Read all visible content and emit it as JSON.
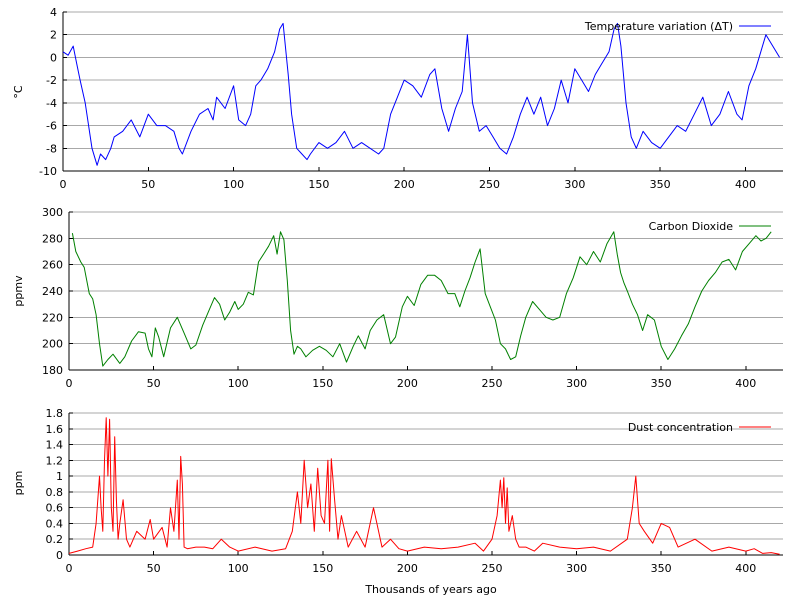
{
  "chart_data": [
    {
      "type": "line",
      "ylabel": "°C",
      "legend": "Temperature variation (ΔT)",
      "legend_position": "top-right",
      "color": "#0000ff",
      "grid": true,
      "xlim": [
        0,
        422
      ],
      "ylim": [
        -10,
        4
      ],
      "xticks": [
        0,
        50,
        100,
        150,
        200,
        250,
        300,
        350,
        400
      ],
      "yticks": [
        -10,
        -8,
        -6,
        -4,
        -2,
        0,
        2,
        4
      ],
      "x": [
        0,
        3,
        6,
        8,
        10,
        13,
        15,
        17,
        20,
        22,
        25,
        28,
        30,
        35,
        40,
        45,
        50,
        55,
        60,
        65,
        68,
        70,
        75,
        80,
        85,
        88,
        90,
        95,
        100,
        103,
        107,
        110,
        113,
        116,
        120,
        124,
        127,
        129,
        132,
        134,
        137,
        140,
        143,
        145,
        150,
        155,
        160,
        165,
        170,
        175,
        180,
        185,
        188,
        192,
        196,
        200,
        205,
        210,
        215,
        218,
        222,
        226,
        230,
        234,
        237,
        240,
        244,
        248,
        252,
        256,
        260,
        264,
        268,
        272,
        276,
        280,
        284,
        288,
        292,
        296,
        300,
        304,
        308,
        312,
        316,
        320,
        323,
        325,
        327,
        330,
        333,
        336,
        340,
        345,
        350,
        355,
        360,
        365,
        370,
        375,
        380,
        385,
        390,
        395,
        398,
        402,
        406,
        409,
        412,
        416,
        420
      ],
      "y": [
        0.5,
        0.2,
        1,
        -0.5,
        -2,
        -4,
        -6,
        -8,
        -9.5,
        -8.5,
        -9,
        -8,
        -7,
        -6.5,
        -5.5,
        -7,
        -5,
        -6,
        -6,
        -6.5,
        -8,
        -8.5,
        -6.5,
        -5,
        -4.5,
        -5.5,
        -3.5,
        -4.5,
        -2.5,
        -5.5,
        -6,
        -5,
        -2.5,
        -2,
        -1,
        0.5,
        2.5,
        3,
        -1.5,
        -5,
        -8,
        -8.5,
        -9,
        -8.5,
        -7.5,
        -8,
        -7.5,
        -6.5,
        -8,
        -7.5,
        -8,
        -8.5,
        -8,
        -5,
        -3.5,
        -2,
        -2.5,
        -3.5,
        -1.5,
        -1,
        -4.5,
        -6.5,
        -4.5,
        -3,
        2,
        -4,
        -6.5,
        -6,
        -7,
        -8,
        -8.5,
        -7,
        -5,
        -3.5,
        -5,
        -3.5,
        -6,
        -4.5,
        -2,
        -4,
        -1,
        -2,
        -3,
        -1.5,
        -0.5,
        0.5,
        2.5,
        3,
        1,
        -4,
        -7,
        -8,
        -6.5,
        -7.5,
        -8,
        -7,
        -6,
        -6.5,
        -5,
        -3.5,
        -6,
        -5,
        -3,
        -5,
        -5.5,
        -2.5,
        -1,
        0.5,
        2,
        1,
        0
      ]
    },
    {
      "type": "line",
      "ylabel": "ppmv",
      "legend": "Carbon Dioxide",
      "legend_position": "top-right",
      "color": "#008000",
      "grid": true,
      "xlim": [
        0,
        422
      ],
      "ylim": [
        180,
        300
      ],
      "xticks": [
        0,
        50,
        100,
        150,
        200,
        250,
        300,
        350,
        400
      ],
      "yticks": [
        180,
        200,
        220,
        240,
        260,
        280,
        300
      ],
      "x": [
        2,
        4,
        7,
        9,
        12,
        14,
        16,
        18,
        20,
        23,
        26,
        30,
        33,
        37,
        41,
        45,
        47,
        49,
        51,
        53,
        56,
        60,
        64,
        68,
        72,
        75,
        79,
        83,
        86,
        89,
        92,
        95,
        98,
        100,
        103,
        106,
        109,
        112,
        115,
        118,
        121,
        123,
        125,
        127,
        129,
        131,
        133,
        135,
        137,
        140,
        144,
        148,
        152,
        156,
        160,
        164,
        168,
        171,
        175,
        178,
        182,
        186,
        190,
        193,
        197,
        200,
        204,
        208,
        212,
        216,
        220,
        224,
        228,
        231,
        234,
        237,
        240,
        243,
        246,
        249,
        252,
        255,
        258,
        261,
        264,
        267,
        270,
        274,
        278,
        282,
        286,
        290,
        294,
        298,
        302,
        306,
        310,
        314,
        318,
        322,
        324,
        326,
        328,
        330,
        333,
        336,
        339,
        342,
        346,
        350,
        354,
        358,
        362,
        366,
        370,
        374,
        378,
        382,
        386,
        390,
        394,
        398,
        402,
        406,
        409,
        412,
        415
      ],
      "y": [
        284,
        270,
        262,
        258,
        238,
        234,
        222,
        200,
        183,
        188,
        192,
        185,
        190,
        202,
        209,
        208,
        196,
        190,
        212,
        205,
        190,
        212,
        220,
        208,
        196,
        199,
        214,
        226,
        235,
        230,
        218,
        224,
        232,
        226,
        230,
        239,
        237,
        262,
        268,
        274,
        282,
        268,
        285,
        279,
        248,
        210,
        192,
        198,
        196,
        190,
        195,
        198,
        195,
        190,
        200,
        186,
        198,
        206,
        196,
        210,
        218,
        222,
        200,
        205,
        228,
        236,
        229,
        245,
        252,
        252,
        248,
        238,
        238,
        228,
        240,
        250,
        262,
        272,
        238,
        228,
        218,
        200,
        196,
        188,
        190,
        206,
        220,
        232,
        226,
        220,
        218,
        220,
        238,
        250,
        266,
        260,
        270,
        262,
        276,
        285,
        268,
        254,
        246,
        240,
        230,
        222,
        210,
        222,
        218,
        198,
        188,
        196,
        206,
        215,
        228,
        240,
        248,
        254,
        262,
        264,
        256,
        270,
        276,
        282,
        278,
        280,
        285
      ]
    },
    {
      "type": "line",
      "ylabel": "ppm",
      "xlabel": "Thousands of years ago",
      "legend": "Dust concentration",
      "legend_position": "top-right",
      "color": "#ff0000",
      "grid": true,
      "xlim": [
        0,
        422
      ],
      "ylim": [
        0,
        1.8
      ],
      "xticks": [
        0,
        50,
        100,
        150,
        200,
        250,
        300,
        350,
        400
      ],
      "yticks": [
        0,
        0.2,
        0.4,
        0.6,
        0.8,
        1,
        1.2,
        1.4,
        1.6,
        1.8
      ],
      "x": [
        0,
        5,
        10,
        14,
        16,
        18,
        19,
        20,
        21,
        22,
        23,
        24,
        25,
        26,
        27,
        28,
        29,
        30,
        32,
        34,
        36,
        40,
        45,
        48,
        50,
        55,
        58,
        60,
        62,
        64,
        65,
        66,
        67,
        68,
        70,
        75,
        80,
        85,
        90,
        95,
        100,
        110,
        120,
        128,
        132,
        135,
        137,
        139,
        141,
        143,
        145,
        147,
        149,
        151,
        153,
        154,
        155,
        157,
        159,
        161,
        163,
        165,
        170,
        175,
        180,
        185,
        190,
        195,
        200,
        210,
        220,
        230,
        240,
        245,
        250,
        253,
        255,
        256,
        257,
        258,
        259,
        260,
        262,
        264,
        266,
        270,
        275,
        280,
        290,
        300,
        310,
        320,
        330,
        333,
        335,
        337,
        340,
        345,
        350,
        355,
        360,
        370,
        380,
        390,
        400,
        405,
        410,
        415,
        420
      ],
      "y": [
        0.02,
        0.05,
        0.08,
        0.1,
        0.4,
        1.0,
        0.6,
        0.3,
        1.2,
        1.74,
        1.0,
        1.72,
        0.6,
        0.3,
        1.5,
        0.7,
        0.2,
        0.4,
        0.7,
        0.2,
        0.1,
        0.3,
        0.2,
        0.45,
        0.2,
        0.35,
        0.1,
        0.6,
        0.3,
        0.95,
        0.2,
        1.25,
        0.9,
        0.1,
        0.08,
        0.1,
        0.1,
        0.08,
        0.2,
        0.1,
        0.05,
        0.1,
        0.05,
        0.08,
        0.3,
        0.8,
        0.4,
        1.2,
        0.6,
        0.9,
        0.3,
        1.1,
        0.5,
        0.4,
        1.2,
        0.3,
        1.22,
        0.7,
        0.2,
        0.5,
        0.3,
        0.1,
        0.3,
        0.1,
        0.6,
        0.1,
        0.2,
        0.08,
        0.05,
        0.1,
        0.08,
        0.1,
        0.15,
        0.05,
        0.2,
        0.5,
        0.95,
        0.6,
        0.98,
        0.4,
        0.85,
        0.3,
        0.5,
        0.2,
        0.1,
        0.1,
        0.05,
        0.15,
        0.1,
        0.08,
        0.1,
        0.05,
        0.2,
        0.6,
        1.0,
        0.4,
        0.3,
        0.15,
        0.4,
        0.35,
        0.1,
        0.2,
        0.05,
        0.1,
        0.05,
        0.08,
        0.02,
        0.03,
        0.01
      ]
    }
  ]
}
